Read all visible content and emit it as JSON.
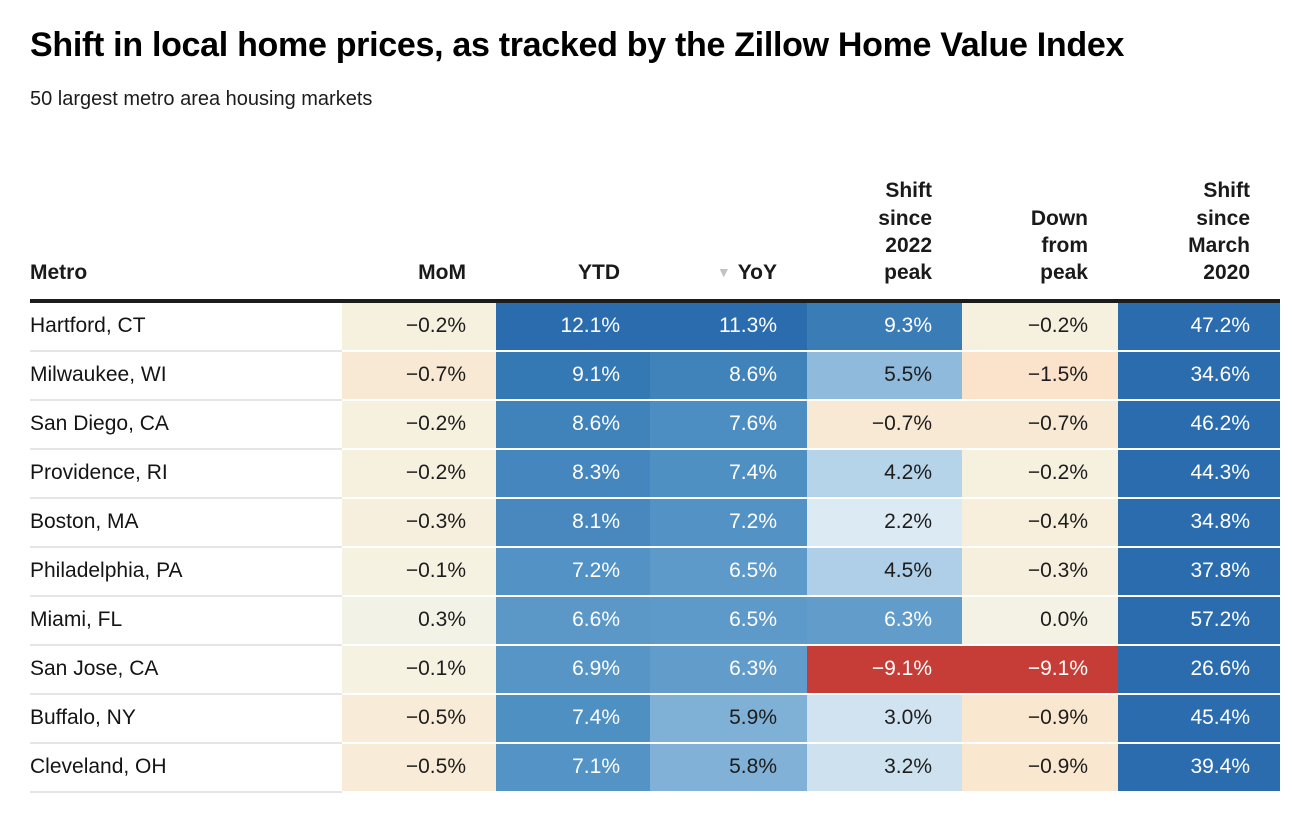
{
  "header": {
    "title": "Shift in local home prices, as tracked by the Zillow Home Value Index",
    "subtitle": "50 largest metro area housing markets"
  },
  "palette": {
    "strong_positive_blue": "#2a6cae",
    "mid_blue": "#5292c4",
    "light_blue": "#d1e3f0",
    "neutral_cream": "#f4f2e4",
    "negative_peach": "#fae2cb",
    "strong_negative_red": "#c53d36",
    "header_rule": "#1c1c1c",
    "sort_triangle": "#c2c2c2"
  },
  "table": {
    "sort_icon": "▼",
    "columns": [
      {
        "id": "metro",
        "label": "Metro"
      },
      {
        "id": "mom",
        "label": "MoM"
      },
      {
        "id": "ytd",
        "label": "YTD"
      },
      {
        "id": "yoy",
        "label": "YoY"
      },
      {
        "id": "shift_2022_peak",
        "label": "Shift\nsince\n2022\npeak"
      },
      {
        "id": "down_from_peak",
        "label": "Down\nfrom\npeak"
      },
      {
        "id": "shift_march_2020",
        "label": "Shift\nsince\nMarch\n2020"
      }
    ],
    "rows": [
      {
        "metro": "Hartford, CT",
        "cells": [
          {
            "v": "−0.2%",
            "bg": "#f6f0df",
            "fg": "#1d1d1d"
          },
          {
            "v": "12.1%",
            "bg": "#2a6cae",
            "fg": "#ffffff"
          },
          {
            "v": "11.3%",
            "bg": "#2a6cae",
            "fg": "#ffffff"
          },
          {
            "v": "9.3%",
            "bg": "#3a7cb6",
            "fg": "#ffffff"
          },
          {
            "v": "−0.2%",
            "bg": "#f6f0df",
            "fg": "#1d1d1d"
          },
          {
            "v": "47.2%",
            "bg": "#2a6cae",
            "fg": "#ffffff"
          }
        ]
      },
      {
        "metro": "Milwaukee, WI",
        "cells": [
          {
            "v": "−0.7%",
            "bg": "#f8e9d4",
            "fg": "#1d1d1d"
          },
          {
            "v": "9.1%",
            "bg": "#3478b4",
            "fg": "#ffffff"
          },
          {
            "v": "8.6%",
            "bg": "#4083ba",
            "fg": "#ffffff"
          },
          {
            "v": "5.5%",
            "bg": "#8fbadc",
            "fg": "#1d1d1d"
          },
          {
            "v": "−1.5%",
            "bg": "#fae2cb",
            "fg": "#1d1d1d"
          },
          {
            "v": "34.6%",
            "bg": "#2a6cae",
            "fg": "#ffffff"
          }
        ]
      },
      {
        "metro": "San Diego, CA",
        "cells": [
          {
            "v": "−0.2%",
            "bg": "#f6f0df",
            "fg": "#1d1d1d"
          },
          {
            "v": "8.6%",
            "bg": "#4083ba",
            "fg": "#ffffff"
          },
          {
            "v": "7.6%",
            "bg": "#4d8ec2",
            "fg": "#ffffff"
          },
          {
            "v": "−0.7%",
            "bg": "#f8e9d4",
            "fg": "#1d1d1d"
          },
          {
            "v": "−0.7%",
            "bg": "#f8e9d4",
            "fg": "#1d1d1d"
          },
          {
            "v": "46.2%",
            "bg": "#2a6cae",
            "fg": "#ffffff"
          }
        ]
      },
      {
        "metro": "Providence, RI",
        "cells": [
          {
            "v": "−0.2%",
            "bg": "#f6f0df",
            "fg": "#1d1d1d"
          },
          {
            "v": "8.3%",
            "bg": "#4486bd",
            "fg": "#ffffff"
          },
          {
            "v": "7.4%",
            "bg": "#4f90c3",
            "fg": "#ffffff"
          },
          {
            "v": "4.2%",
            "bg": "#b5d3e9",
            "fg": "#1d1d1d"
          },
          {
            "v": "−0.2%",
            "bg": "#f6f0df",
            "fg": "#1d1d1d"
          },
          {
            "v": "44.3%",
            "bg": "#2a6cae",
            "fg": "#ffffff"
          }
        ]
      },
      {
        "metro": "Boston, MA",
        "cells": [
          {
            "v": "−0.3%",
            "bg": "#f7efdd",
            "fg": "#1d1d1d"
          },
          {
            "v": "8.1%",
            "bg": "#4888bf",
            "fg": "#ffffff"
          },
          {
            "v": "7.2%",
            "bg": "#5292c4",
            "fg": "#ffffff"
          },
          {
            "v": "2.2%",
            "bg": "#dceaf3",
            "fg": "#1d1d1d"
          },
          {
            "v": "−0.4%",
            "bg": "#f7eedb",
            "fg": "#1d1d1d"
          },
          {
            "v": "34.8%",
            "bg": "#2a6cae",
            "fg": "#ffffff"
          }
        ]
      },
      {
        "metro": "Philadelphia, PA",
        "cells": [
          {
            "v": "−0.1%",
            "bg": "#f6f2e2",
            "fg": "#1d1d1d"
          },
          {
            "v": "7.2%",
            "bg": "#5292c4",
            "fg": "#ffffff"
          },
          {
            "v": "6.5%",
            "bg": "#5d99c9",
            "fg": "#ffffff"
          },
          {
            "v": "4.5%",
            "bg": "#aecfe7",
            "fg": "#1d1d1d"
          },
          {
            "v": "−0.3%",
            "bg": "#f7efdd",
            "fg": "#1d1d1d"
          },
          {
            "v": "37.8%",
            "bg": "#2a6cae",
            "fg": "#ffffff"
          }
        ]
      },
      {
        "metro": "Miami, FL",
        "cells": [
          {
            "v": "0.3%",
            "bg": "#f3f2e7",
            "fg": "#1d1d1d"
          },
          {
            "v": "6.6%",
            "bg": "#5b98c8",
            "fg": "#ffffff"
          },
          {
            "v": "6.5%",
            "bg": "#5d99c9",
            "fg": "#ffffff"
          },
          {
            "v": "6.3%",
            "bg": "#629cca",
            "fg": "#ffffff"
          },
          {
            "v": "0.0%",
            "bg": "#f4f2e4",
            "fg": "#1d1d1d"
          },
          {
            "v": "57.2%",
            "bg": "#2a6cae",
            "fg": "#ffffff"
          }
        ]
      },
      {
        "metro": "San Jose, CA",
        "cells": [
          {
            "v": "−0.1%",
            "bg": "#f6f2e2",
            "fg": "#1d1d1d"
          },
          {
            "v": "6.9%",
            "bg": "#5795c6",
            "fg": "#ffffff"
          },
          {
            "v": "6.3%",
            "bg": "#629cca",
            "fg": "#ffffff"
          },
          {
            "v": "−9.1%",
            "bg": "#c53d36",
            "fg": "#ffffff"
          },
          {
            "v": "−9.1%",
            "bg": "#c53d36",
            "fg": "#ffffff"
          },
          {
            "v": "26.6%",
            "bg": "#2a6cae",
            "fg": "#ffffff"
          }
        ]
      },
      {
        "metro": "Buffalo, NY",
        "cells": [
          {
            "v": "−0.5%",
            "bg": "#f8ecd8",
            "fg": "#1d1d1d"
          },
          {
            "v": "7.4%",
            "bg": "#4f90c3",
            "fg": "#ffffff"
          },
          {
            "v": "5.9%",
            "bg": "#7fb0d5",
            "fg": "#1d1d1d"
          },
          {
            "v": "3.0%",
            "bg": "#d1e3f0",
            "fg": "#1d1d1d"
          },
          {
            "v": "−0.9%",
            "bg": "#f9e7d0",
            "fg": "#1d1d1d"
          },
          {
            "v": "45.4%",
            "bg": "#2a6cae",
            "fg": "#ffffff"
          }
        ]
      },
      {
        "metro": "Cleveland, OH",
        "cells": [
          {
            "v": "−0.5%",
            "bg": "#f8ecd8",
            "fg": "#1d1d1d"
          },
          {
            "v": "7.1%",
            "bg": "#5493c5",
            "fg": "#ffffff"
          },
          {
            "v": "5.8%",
            "bg": "#81b1d6",
            "fg": "#1d1d1d"
          },
          {
            "v": "3.2%",
            "bg": "#cde1ef",
            "fg": "#1d1d1d"
          },
          {
            "v": "−0.9%",
            "bg": "#f9e7d0",
            "fg": "#1d1d1d"
          },
          {
            "v": "39.4%",
            "bg": "#2a6cae",
            "fg": "#ffffff"
          }
        ]
      }
    ]
  },
  "chart_data": {
    "type": "heatmap",
    "title": "Shift in local home prices, as tracked by the Zillow Home Value Index",
    "subtitle": "50 largest metro area housing markets",
    "units": "percent",
    "sorted_by": "YoY descending",
    "columns": [
      "Metro",
      "MoM",
      "YTD",
      "YoY",
      "Shift since 2022 peak",
      "Down from peak",
      "Shift since March 2020"
    ],
    "rows": [
      [
        "Hartford, CT",
        -0.2,
        12.1,
        11.3,
        9.3,
        -0.2,
        47.2
      ],
      [
        "Milwaukee, WI",
        -0.7,
        9.1,
        8.6,
        5.5,
        -1.5,
        34.6
      ],
      [
        "San Diego, CA",
        -0.2,
        8.6,
        7.6,
        -0.7,
        -0.7,
        46.2
      ],
      [
        "Providence, RI",
        -0.2,
        8.3,
        7.4,
        4.2,
        -0.2,
        44.3
      ],
      [
        "Boston, MA",
        -0.3,
        8.1,
        7.2,
        2.2,
        -0.4,
        34.8
      ],
      [
        "Philadelphia, PA",
        -0.1,
        7.2,
        6.5,
        4.5,
        -0.3,
        37.8
      ],
      [
        "Miami, FL",
        0.3,
        6.6,
        6.5,
        6.3,
        0.0,
        57.2
      ],
      [
        "San Jose, CA",
        -0.1,
        6.9,
        6.3,
        -9.1,
        -9.1,
        26.6
      ],
      [
        "Buffalo, NY",
        -0.5,
        7.4,
        5.9,
        3.0,
        -0.9,
        45.4
      ],
      [
        "Cleveland, OH",
        -0.5,
        7.1,
        5.8,
        3.2,
        -0.9,
        39.4
      ]
    ],
    "color_scale": {
      "positive": "blue (darker = larger gain, white text above ~6%)",
      "near_zero_negative": "cream/peach (darker peach = larger decline)",
      "strong_negative": "red with white text"
    }
  }
}
